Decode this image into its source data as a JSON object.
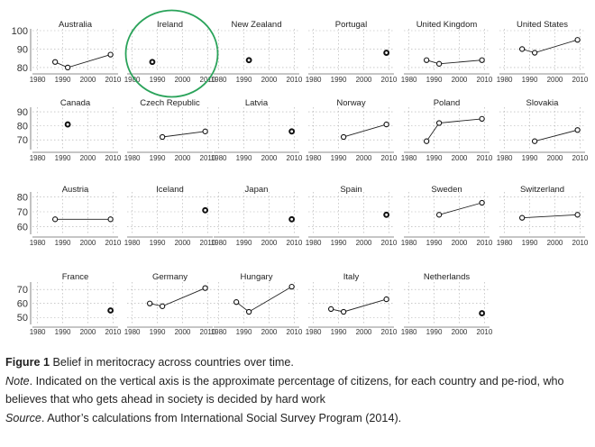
{
  "chart_data": {
    "type": "scatter",
    "x_ticks": [
      1980,
      1990,
      2000,
      2010
    ],
    "xlim": [
      1978,
      2012
    ],
    "rows": [
      {
        "ylim": [
          78,
          100
        ],
        "yticks": [
          80,
          90,
          100
        ],
        "panels": [
          {
            "country": "Australia",
            "points": [
              [
                1987,
                83
              ],
              [
                1992,
                80
              ],
              [
                2009,
                87
              ]
            ]
          },
          {
            "country": "Ireland",
            "points": [
              [
                1988,
                83
              ]
            ],
            "highlighted": true
          },
          {
            "country": "New Zealand",
            "points": [
              [
                1992,
                84
              ]
            ]
          },
          {
            "country": "Portugal",
            "points": [
              [
                2009,
                88
              ]
            ]
          },
          {
            "country": "United Kingdom",
            "points": [
              [
                1987,
                84
              ],
              [
                1992,
                82
              ],
              [
                2009,
                84
              ]
            ]
          },
          {
            "country": "United States",
            "points": [
              [
                1987,
                90
              ],
              [
                1992,
                88
              ],
              [
                2009,
                95
              ]
            ]
          }
        ]
      },
      {
        "ylim": [
          63,
          92
        ],
        "yticks": [
          70,
          80,
          90
        ],
        "panels": [
          {
            "country": "Canada",
            "points": [
              [
                1992,
                81
              ]
            ]
          },
          {
            "country": "Czech Republic",
            "points": [
              [
                1992,
                72
              ],
              [
                2009,
                76
              ]
            ]
          },
          {
            "country": "Latvia",
            "points": [
              [
                2009,
                76
              ]
            ]
          },
          {
            "country": "Norway",
            "points": [
              [
                1992,
                72
              ],
              [
                2009,
                81
              ]
            ]
          },
          {
            "country": "Poland",
            "points": [
              [
                1987,
                69
              ],
              [
                1992,
                82
              ],
              [
                2009,
                85
              ]
            ]
          },
          {
            "country": "Slovakia",
            "points": [
              [
                1992,
                69
              ],
              [
                2009,
                77
              ]
            ]
          }
        ]
      },
      {
        "ylim": [
          55,
          82
        ],
        "yticks": [
          60,
          70,
          80
        ],
        "panels": [
          {
            "country": "Austria",
            "points": [
              [
                1987,
                65
              ],
              [
                2009,
                65
              ]
            ]
          },
          {
            "country": "Iceland",
            "points": [
              [
                2009,
                71
              ]
            ]
          },
          {
            "country": "Japan",
            "points": [
              [
                2009,
                65
              ]
            ]
          },
          {
            "country": "Spain",
            "points": [
              [
                2009,
                68
              ]
            ]
          },
          {
            "country": "Sweden",
            "points": [
              [
                1992,
                68
              ],
              [
                2009,
                76
              ]
            ]
          },
          {
            "country": "Switzerland",
            "points": [
              [
                1987,
                66
              ],
              [
                2009,
                68
              ]
            ]
          }
        ]
      },
      {
        "ylim": [
          45,
          74
        ],
        "yticks": [
          50,
          60,
          70
        ],
        "panels": [
          {
            "country": "France",
            "points": [
              [
                2009,
                55
              ]
            ]
          },
          {
            "country": "Germany",
            "points": [
              [
                1987,
                60
              ],
              [
                1992,
                58
              ],
              [
                2009,
                71
              ]
            ]
          },
          {
            "country": "Hungary",
            "points": [
              [
                1987,
                61
              ],
              [
                1992,
                54
              ],
              [
                2009,
                72
              ]
            ]
          },
          {
            "country": "Italy",
            "points": [
              [
                1987,
                56
              ],
              [
                1992,
                54
              ],
              [
                2009,
                63
              ]
            ]
          },
          {
            "country": "Netherlands",
            "points": [
              [
                2009,
                53
              ]
            ]
          }
        ]
      }
    ]
  },
  "caption": {
    "figure_label": "Figure 1",
    "figure_title": " Belief in meritocracy across countries over time.",
    "note_label": "Note",
    "note_text": ". Indicated on the vertical axis is the approximate percentage of citizens, for each country and pe-riod, who believes that who gets ahead in society is decided by hard work",
    "source_label": "Source",
    "source_text": ". Author’s calculations from International Social Survey Program (2014)."
  }
}
